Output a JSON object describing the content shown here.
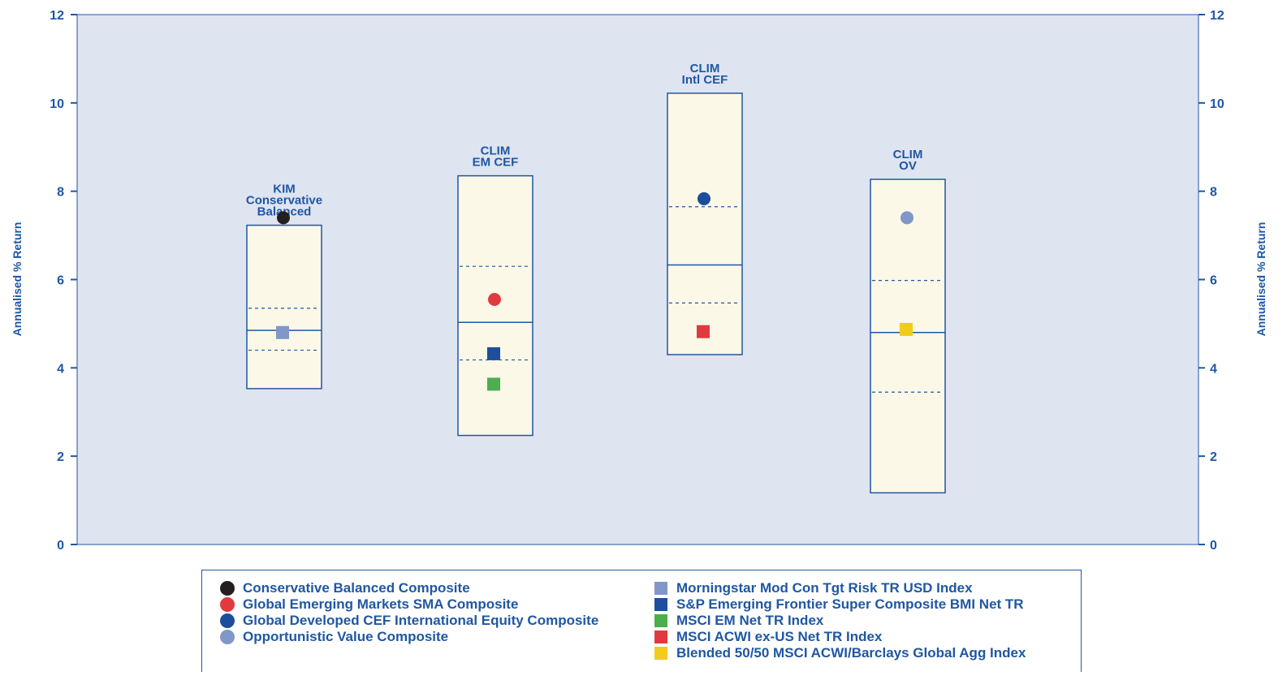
{
  "chart_data": {
    "type": "box",
    "ylabel_left": "Annualised % Return",
    "ylabel_right": "Annualised % Return",
    "ylim": [
      0,
      12
    ],
    "yticks": [
      "0",
      "2",
      "4",
      "6",
      "8",
      "10",
      "12"
    ],
    "grid": false,
    "background_color": "#dfe4f1",
    "box_fill": "#fbf8e8",
    "groups": [
      {
        "label_lines": [
          "KIM",
          "Conservative",
          "Balanced"
        ],
        "box": {
          "low": 3.53,
          "q1": 4.4,
          "median": 4.85,
          "q3": 5.35,
          "high": 7.23
        },
        "markers": [
          {
            "series": "Conservative Balanced Composite",
            "shape": "circle",
            "color": "#231f20",
            "value": 7.4
          },
          {
            "series": "Morningstar Mod Con Tgt Risk TR USD Index",
            "shape": "square",
            "color": "#8097c8",
            "value": 4.8
          }
        ]
      },
      {
        "label_lines": [
          "CLIM",
          "EM CEF"
        ],
        "box": {
          "low": 2.47,
          "q1": 4.18,
          "median": 5.03,
          "q3": 6.3,
          "high": 8.35
        },
        "markers": [
          {
            "series": "Global Emerging Markets SMA Composite",
            "shape": "circle",
            "color": "#e03a3e",
            "value": 5.55
          },
          {
            "series": "S&P Emerging Frontier Super Composite BMI Net TR",
            "shape": "square",
            "color": "#1f4f9c",
            "value": 4.32
          },
          {
            "series": "MSCI EM Net TR Index",
            "shape": "square",
            "color": "#4cae4c",
            "value": 3.63
          }
        ]
      },
      {
        "label_lines": [
          "CLIM",
          "Intl CEF"
        ],
        "box": {
          "low": 4.3,
          "q1": 5.47,
          "median": 6.33,
          "q3": 7.65,
          "high": 10.22
        },
        "markers": [
          {
            "series": "Global Developed CEF International Equity Composite",
            "shape": "circle",
            "color": "#1a4e9c",
            "value": 7.83
          },
          {
            "series": "MSCI ACWI ex-US Net TR Index",
            "shape": "square",
            "color": "#e03a3e",
            "value": 4.82
          }
        ]
      },
      {
        "label_lines": [
          "CLIM",
          "OV"
        ],
        "box": {
          "low": 1.17,
          "q1": 3.45,
          "median": 4.8,
          "q3": 5.98,
          "high": 8.27
        },
        "markers": [
          {
            "series": "Opportunistic Value Composite",
            "shape": "circle",
            "color": "#8097c8",
            "value": 7.4
          },
          {
            "series": "Blended 50/50 MSCI ACWI/Barclays Global Agg Index",
            "shape": "square",
            "color": "#f2cc1a",
            "value": 4.87
          }
        ]
      }
    ]
  },
  "legend": {
    "left": [
      {
        "label": "Conservative Balanced Composite",
        "shape": "circle",
        "color": "#231f20"
      },
      {
        "label": "Global Emerging Markets SMA Composite",
        "shape": "circle",
        "color": "#e03a3e"
      },
      {
        "label": "Global Developed CEF International Equity Composite",
        "shape": "circle",
        "color": "#1a4e9c"
      },
      {
        "label": "Opportunistic Value Composite",
        "shape": "circle",
        "color": "#8097c8"
      }
    ],
    "right": [
      {
        "label": "Morningstar Mod Con Tgt Risk TR USD Index",
        "shape": "square",
        "color": "#8097c8"
      },
      {
        "label": "S&P Emerging Frontier Super Composite BMI Net TR",
        "shape": "square",
        "color": "#1f4f9c"
      },
      {
        "label": "MSCI EM Net TR Index",
        "shape": "square",
        "color": "#4cae4c"
      },
      {
        "label": "MSCI ACWI ex-US Net TR Index",
        "shape": "square",
        "color": "#e03a3e"
      },
      {
        "label": "Blended 50/50 MSCI ACWI/Barclays Global Agg Index",
        "shape": "square",
        "color": "#f2cc1a"
      }
    ]
  },
  "colors": {
    "axis": "#1f57a3",
    "text": "#1f57a3"
  }
}
